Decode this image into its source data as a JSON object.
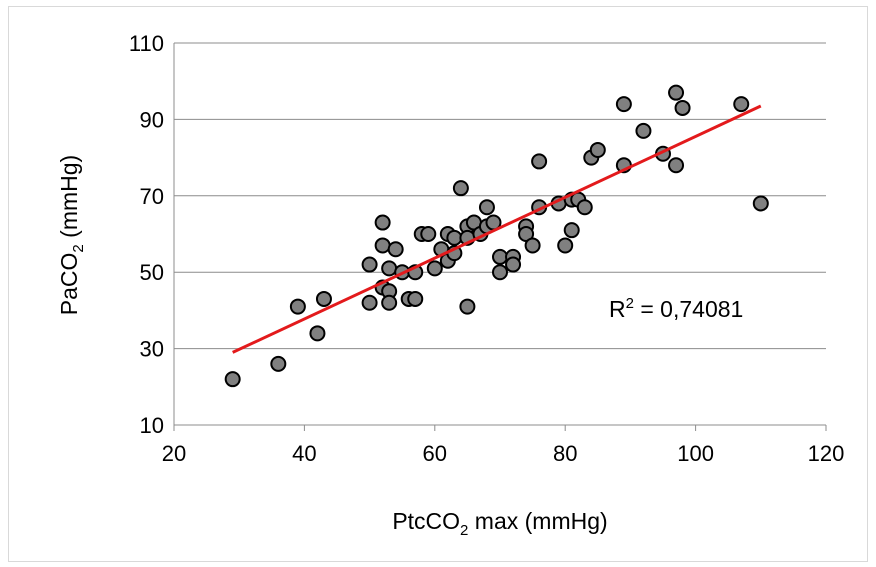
{
  "chart_data": {
    "type": "scatter",
    "xlabel": {
      "pre": "PtcCO",
      "sub": "2",
      "post": " max (mmHg)"
    },
    "ylabel": {
      "pre": "PaCO",
      "sub": "2",
      "post": " (mmHg)"
    },
    "xlim": [
      20,
      120
    ],
    "ylim": [
      10,
      110
    ],
    "x_ticks": [
      "20",
      "40",
      "60",
      "80",
      "100",
      "120"
    ],
    "y_ticks": [
      "10",
      "30",
      "50",
      "70",
      "90",
      "110"
    ],
    "grid": "horizontal",
    "annotation": {
      "pre": "R",
      "sup": "2",
      "post": " = 0,74081"
    },
    "trendline": {
      "color": "#e31a1c",
      "x": [
        29,
        110
      ],
      "y": [
        29,
        93.5
      ]
    },
    "marker": {
      "fill": "#808080",
      "edge": "#000000"
    },
    "points": [
      [
        29,
        22
      ],
      [
        36,
        26
      ],
      [
        39,
        41
      ],
      [
        42,
        34
      ],
      [
        43,
        43
      ],
      [
        50,
        52
      ],
      [
        50,
        42
      ],
      [
        52,
        63
      ],
      [
        52,
        57
      ],
      [
        52,
        46
      ],
      [
        53,
        51
      ],
      [
        53,
        45
      ],
      [
        53,
        42
      ],
      [
        54,
        56
      ],
      [
        55,
        50
      ],
      [
        56,
        43
      ],
      [
        57,
        43
      ],
      [
        57,
        50
      ],
      [
        58,
        60
      ],
      [
        59,
        60
      ],
      [
        60,
        51
      ],
      [
        61,
        56
      ],
      [
        62,
        60
      ],
      [
        62,
        53
      ],
      [
        63,
        55
      ],
      [
        63,
        59
      ],
      [
        64,
        72
      ],
      [
        65,
        62
      ],
      [
        65,
        59
      ],
      [
        65,
        41
      ],
      [
        66,
        63
      ],
      [
        67,
        60
      ],
      [
        68,
        62
      ],
      [
        68,
        67
      ],
      [
        69,
        63
      ],
      [
        70,
        50
      ],
      [
        70,
        54
      ],
      [
        72,
        54
      ],
      [
        72,
        52
      ],
      [
        74,
        62
      ],
      [
        74,
        60
      ],
      [
        75,
        57
      ],
      [
        76,
        79
      ],
      [
        76,
        67
      ],
      [
        79,
        68
      ],
      [
        80,
        57
      ],
      [
        81,
        69
      ],
      [
        81,
        61
      ],
      [
        82,
        69
      ],
      [
        83,
        67
      ],
      [
        84,
        80
      ],
      [
        85,
        82
      ],
      [
        89,
        94
      ],
      [
        89,
        78
      ],
      [
        92,
        87
      ],
      [
        95,
        81
      ],
      [
        97,
        97
      ],
      [
        97,
        78
      ],
      [
        98,
        93
      ],
      [
        107,
        94
      ],
      [
        110,
        68
      ]
    ]
  }
}
